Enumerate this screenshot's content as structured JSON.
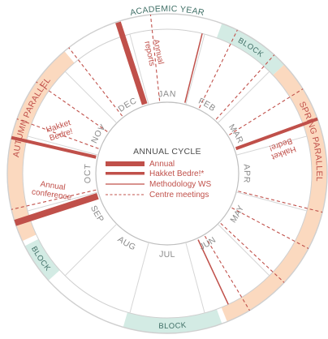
{
  "diagram": {
    "title": "ACADEMIC YEAR",
    "center_title": "ANNUAL CYCLE",
    "months": [
      "JAN",
      "FEB",
      "MAR",
      "APR",
      "MAY",
      "JUN",
      "JUL",
      "AUG",
      "SEP",
      "OCT",
      "NOV",
      "DEC"
    ],
    "blocks": [
      "BLOCK",
      "BLOCK",
      "BLOCK"
    ],
    "parallels": {
      "autumn": "AUTUMN PARALLEL",
      "spring": "SPRING PARALLEL"
    },
    "events": {
      "annual_reports": [
        "Annual",
        "reports"
      ],
      "hakket_autumn": [
        "Hakket",
        "Bedre!"
      ],
      "annual_conference": [
        "Annual",
        "conference"
      ],
      "hakket_spring": [
        "Hakket",
        "Bedre!"
      ]
    },
    "legend": [
      {
        "label": "Annual"
      },
      {
        "label": "Hakket Bedre!*"
      },
      {
        "label": "Methodology WS"
      },
      {
        "label": "Centre meetings"
      }
    ],
    "colors": {
      "accent": "#c0504a",
      "teal": "#3f6f66",
      "block_band": "#d3ebe4",
      "parallel_band": "#fbd9bf",
      "ring": "#cfcfcf"
    }
  }
}
